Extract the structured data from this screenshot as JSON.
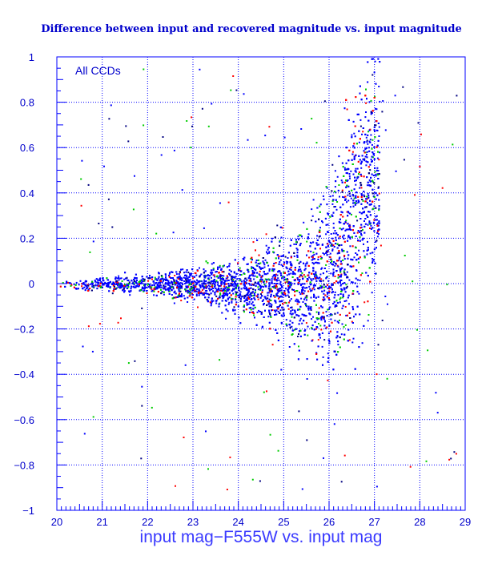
{
  "chart_data": {
    "type": "scatter",
    "title": "Difference between input and recovered magnitude vs. input magnitude",
    "xlabel": "input mag−F555W vs. input mag",
    "ylabel": "",
    "annotation": "All CCDs",
    "xlim": [
      20,
      29
    ],
    "ylim": [
      -1,
      1
    ],
    "x_ticks": [
      "20",
      "21",
      "22",
      "23",
      "24",
      "25",
      "26",
      "27",
      "28",
      "29"
    ],
    "y_ticks": [
      "−1",
      "−0.8",
      "−0.6",
      "−0.4",
      "−0.2",
      "0",
      "0.2",
      "0.4",
      "0.6",
      "0.8",
      "1"
    ],
    "grid": true,
    "series_colors": [
      "#0000ff",
      "#ff0000",
      "#00cc00",
      "#000080"
    ],
    "envelope": {
      "x": [
        20.0,
        21.0,
        22.0,
        23.0,
        24.0,
        25.0,
        25.5,
        26.0,
        26.5,
        26.8,
        27.0
      ],
      "y_upper": [
        0.02,
        0.03,
        0.05,
        0.07,
        0.12,
        0.22,
        0.3,
        0.45,
        0.8,
        1.0,
        1.0
      ],
      "y_lower": [
        -0.02,
        -0.03,
        -0.05,
        -0.08,
        -0.13,
        -0.22,
        -0.32,
        -0.38,
        -0.3,
        -0.15,
        -0.05
      ]
    }
  }
}
